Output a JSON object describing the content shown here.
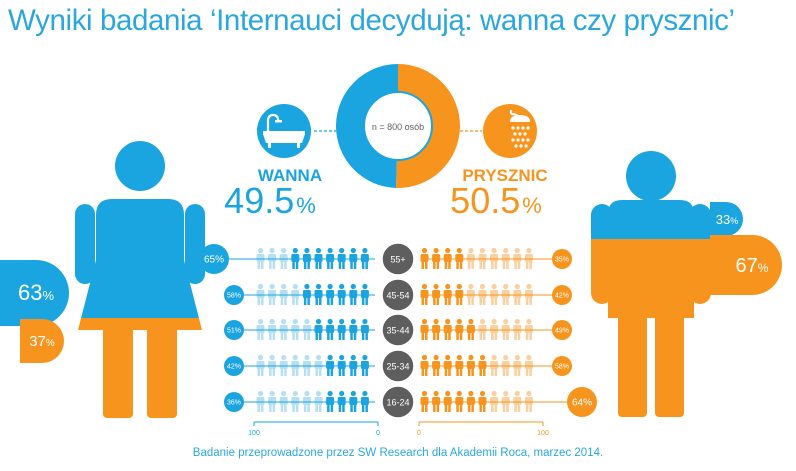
{
  "title": "Wyniki badania ‘Internauci decydują: wanna czy prysznic’",
  "footer": "Badanie przeprowadzone przez SW Research dla Akademii Roca, marzec 2014.",
  "colors": {
    "blue": "#1aa4e0",
    "light_blue": "#b5dff3",
    "orange": "#f7941d",
    "light_orange": "#fbcf9e",
    "gray": "#5e5e5e",
    "white": "#ffffff"
  },
  "chart_data": {
    "type": "infographic",
    "sample_label": "n = 800 osób",
    "overall": [
      {
        "label": "WANNA",
        "value": 49.5,
        "display": "49.5",
        "unit": "%",
        "icon": "bathtub-icon"
      },
      {
        "label": "PRYSZNIC",
        "value": 50.5,
        "display": "50.5",
        "unit": "%",
        "icon": "shower-icon"
      }
    ],
    "gender": {
      "women": {
        "wanna": 63,
        "prysznic": 37,
        "wanna_label": "63",
        "prysznic_label": "37",
        "unit": "%"
      },
      "men": {
        "wanna": 33,
        "prysznic": 67,
        "wanna_label": "33",
        "prysznic_label": "67",
        "unit": "%"
      }
    },
    "age_groups": [
      "55+",
      "45-54",
      "35-44",
      "25-34",
      "16-24"
    ],
    "age_wanna": [
      65,
      58,
      51,
      42,
      36
    ],
    "age_prysznic": [
      35,
      42,
      49,
      58,
      64
    ],
    "age_wanna_labels": [
      "65%",
      "58%",
      "51%",
      "42%",
      "36%"
    ],
    "age_prysznic_labels": [
      "35%",
      "42%",
      "49%",
      "58%",
      "64%"
    ],
    "left_axis": {
      "ticks": [
        "100",
        "0"
      ],
      "range": [
        100,
        0
      ]
    },
    "right_axis": {
      "ticks": [
        "0",
        "100"
      ],
      "range": [
        0,
        100
      ]
    }
  }
}
